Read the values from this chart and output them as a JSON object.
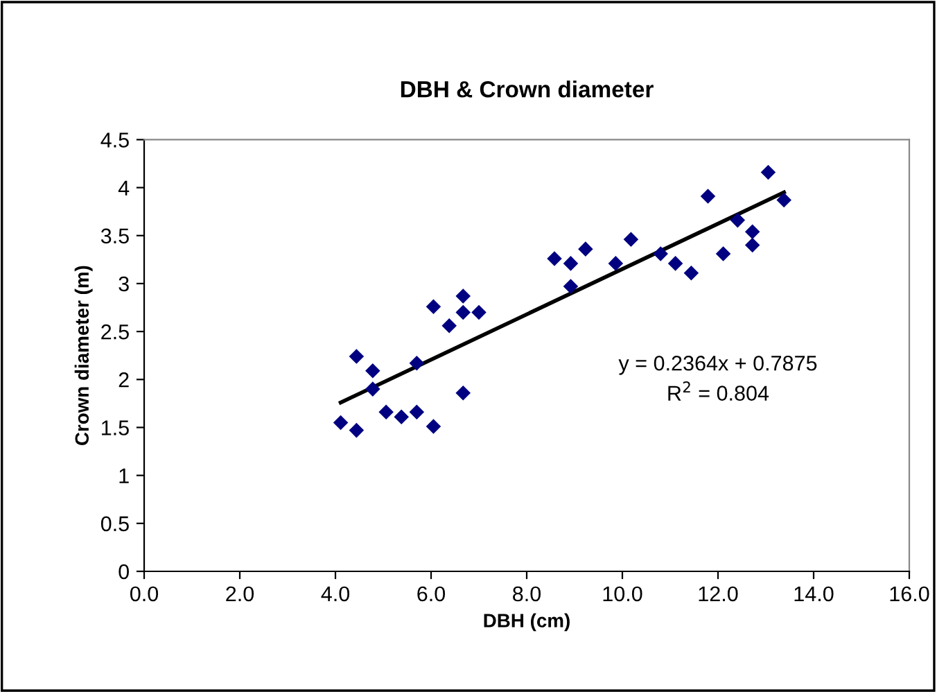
{
  "chart_data": {
    "type": "scatter",
    "title": "DBH & Crown diameter",
    "xlabel": "DBH (cm)",
    "ylabel": "Crown diameter (m)",
    "xlim": [
      0,
      16
    ],
    "ylim": [
      0,
      4.5
    ],
    "xticks": [
      {
        "value": 0,
        "label": "0.0"
      },
      {
        "value": 2,
        "label": "2.0"
      },
      {
        "value": 4,
        "label": "4.0"
      },
      {
        "value": 6,
        "label": "6.0"
      },
      {
        "value": 8,
        "label": "8.0"
      },
      {
        "value": 10,
        "label": "10.0"
      },
      {
        "value": 12,
        "label": "12.0"
      },
      {
        "value": 14,
        "label": "14.0"
      },
      {
        "value": 16,
        "label": "16.0"
      }
    ],
    "yticks": [
      0,
      0.5,
      1,
      1.5,
      2,
      2.5,
      3,
      3.5,
      4,
      4.5
    ],
    "grid": false,
    "legend": false,
    "series": [
      {
        "color": "#000080",
        "marker": "diamond",
        "x": [
          4.11,
          4.44,
          4.44,
          4.78,
          4.78,
          5.06,
          5.38,
          5.7,
          5.7,
          6.05,
          6.05,
          6.38,
          6.67,
          6.67,
          6.67,
          7.0,
          8.58,
          8.92,
          8.92,
          9.23,
          9.86,
          10.18,
          10.8,
          11.11,
          11.44,
          11.79,
          12.11,
          12.41,
          12.72,
          12.72,
          13.05,
          13.38
        ],
        "values": [
          1.55,
          1.47,
          2.24,
          2.09,
          1.9,
          1.66,
          1.61,
          1.66,
          2.17,
          1.51,
          2.76,
          2.56,
          2.87,
          2.7,
          1.86,
          2.7,
          3.26,
          3.21,
          2.97,
          3.36,
          3.21,
          3.46,
          3.31,
          3.21,
          3.11,
          3.91,
          3.31,
          3.66,
          3.54,
          3.4,
          4.16,
          3.87
        ]
      },
      {
        "type": "line",
        "color": "#000000",
        "x": [
          4.11,
          13.38
        ],
        "values": [
          1.76,
          3.95
        ],
        "line_style": "solid",
        "marker": "none"
      }
    ],
    "annotations": [
      "y = 0.2364x + 0.7875",
      "R$^{2}$ = 0.804"
    ]
  }
}
